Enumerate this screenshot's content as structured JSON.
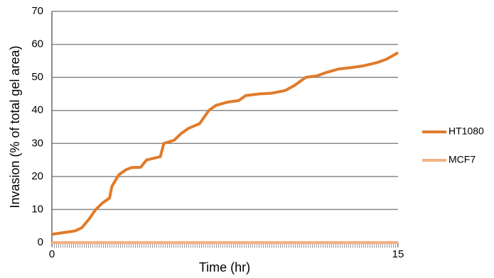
{
  "chart_data": {
    "type": "line",
    "xlabel": "Time (hr)",
    "ylabel": "Invasion (% of total gel area)",
    "x": [
      0,
      0.5,
      1,
      1.3,
      1.6,
      1.9,
      2.2,
      2.5,
      2.6,
      2.9,
      3.2,
      3.45,
      3.85,
      4.1,
      4.7,
      4.85,
      5.3,
      5.6,
      5.9,
      6.4,
      6.8,
      7.1,
      7.6,
      8.1,
      8.4,
      9,
      9.5,
      10.1,
      10.5,
      11,
      11.5,
      11.9,
      12.4,
      13,
      13.5,
      14.1,
      14.5,
      15
    ],
    "series": [
      {
        "name": "HT1080",
        "color": "#e07b2b",
        "values": [
          2.5,
          3,
          3.5,
          4.5,
          7,
          10,
          12,
          13.5,
          17,
          20.5,
          22,
          22.7,
          22.8,
          25,
          26,
          30,
          31,
          33,
          34.5,
          36,
          40,
          41.5,
          42.5,
          43,
          44.5,
          45,
          45.2,
          46,
          47.5,
          50,
          50.5,
          51.5,
          52.5,
          53,
          53.5,
          54.5,
          55.5,
          57.5
        ]
      },
      {
        "name": "MCF7",
        "color": "#f4b183",
        "values": [
          0,
          0,
          0,
          0,
          0,
          0,
          0,
          0,
          0,
          0,
          0,
          0,
          0,
          0,
          0,
          0,
          0,
          0,
          0,
          0,
          0,
          0,
          0,
          0,
          0,
          0,
          0,
          0,
          0,
          0,
          0,
          0,
          0,
          0,
          0,
          0,
          0,
          0
        ]
      }
    ],
    "xlim": [
      0,
      15
    ],
    "xticks": [
      0,
      15
    ],
    "ylim": [
      0,
      70
    ],
    "yticks": [
      0,
      10,
      20,
      30,
      40,
      50,
      60,
      70
    ],
    "grid": true,
    "legend": "right"
  }
}
